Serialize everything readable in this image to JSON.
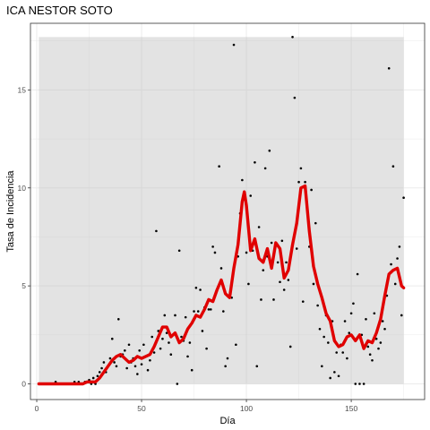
{
  "chart_data": {
    "type": "scatter",
    "title": "ICA NESTOR SOTO",
    "xlabel": "Día",
    "ylabel": "Tasa de Incidencia",
    "xlim": [
      -3,
      185
    ],
    "ylim": [
      -0.8,
      18.4
    ],
    "x_ticks": [
      0,
      50,
      100,
      150
    ],
    "y_ticks": [
      0,
      5,
      10,
      15
    ],
    "x_tick_labels": [
      "0",
      "50",
      "100",
      "150"
    ],
    "y_tick_labels": [
      "0",
      "5",
      "10",
      "15"
    ],
    "grid": true,
    "legend": "none",
    "colors": {
      "panel_background": "#ffffff",
      "grid": "#ebebeb",
      "confidence_band": "#bdbdbd",
      "points": "#000000",
      "smoothed_line": "#e00000"
    },
    "confidence_band": {
      "x": [
        1,
        175
      ],
      "y": [
        0,
        17.7
      ]
    },
    "series": [
      {
        "type": "points",
        "points": [
          [
            1,
            0
          ],
          [
            3,
            0
          ],
          [
            5,
            0
          ],
          [
            6,
            0
          ],
          [
            8,
            0
          ],
          [
            9,
            0.1
          ],
          [
            10,
            0
          ],
          [
            12,
            0
          ],
          [
            14,
            0
          ],
          [
            15,
            0
          ],
          [
            16,
            0
          ],
          [
            17,
            0
          ],
          [
            18,
            0.1
          ],
          [
            19,
            0
          ],
          [
            20,
            0.1
          ],
          [
            21,
            0
          ],
          [
            22,
            0
          ],
          [
            23,
            0.1
          ],
          [
            24,
            0.1
          ],
          [
            25,
            0.2
          ],
          [
            26,
            0
          ],
          [
            27,
            0.3
          ],
          [
            28,
            0
          ],
          [
            29,
            0.4
          ],
          [
            30,
            0.6
          ],
          [
            31,
            0.8
          ],
          [
            32,
            1.1
          ],
          [
            33,
            0.6
          ],
          [
            34,
            0.9
          ],
          [
            35,
            1.3
          ],
          [
            36,
            2.3
          ],
          [
            37,
            1.1
          ],
          [
            38,
            0.9
          ],
          [
            39,
            3.3
          ],
          [
            40,
            1.4
          ],
          [
            41,
            1.5
          ],
          [
            42,
            1.7
          ],
          [
            43,
            0.8
          ],
          [
            44,
            2
          ],
          [
            45,
            1.1
          ],
          [
            46,
            1.3
          ],
          [
            47,
            0.9
          ],
          [
            48,
            0.5
          ],
          [
            49,
            1.7
          ],
          [
            50,
            1
          ],
          [
            51,
            2
          ],
          [
            52,
            1.4
          ],
          [
            53,
            0.7
          ],
          [
            54,
            1.2
          ],
          [
            55,
            2.4
          ],
          [
            56,
            1.6
          ],
          [
            57,
            7.8
          ],
          [
            58,
            2.7
          ],
          [
            59,
            1.8
          ],
          [
            60,
            2.3
          ],
          [
            61,
            3.5
          ],
          [
            62,
            2.6
          ],
          [
            63,
            2.1
          ],
          [
            64,
            1.5
          ],
          [
            65,
            2.5
          ],
          [
            66,
            3.5
          ],
          [
            67,
            0
          ],
          [
            68,
            6.8
          ],
          [
            69,
            2.4
          ],
          [
            70,
            2.2
          ],
          [
            71,
            3.4
          ],
          [
            72,
            1.4
          ],
          [
            73,
            2.1
          ],
          [
            74,
            0.7
          ],
          [
            75,
            3.7
          ],
          [
            76,
            4.9
          ],
          [
            77,
            3.7
          ],
          [
            78,
            4.8
          ],
          [
            79,
            2.7
          ],
          [
            80,
            3.9
          ],
          [
            81,
            1.8
          ],
          [
            82,
            3.8
          ],
          [
            83,
            3.8
          ],
          [
            84,
            7
          ],
          [
            85,
            6.7
          ],
          [
            86,
            4.8
          ],
          [
            87,
            11.1
          ],
          [
            88,
            5.9
          ],
          [
            89,
            3.7
          ],
          [
            90,
            0.9
          ],
          [
            91,
            1.3
          ],
          [
            92,
            4.5
          ],
          [
            93,
            4.4
          ],
          [
            94,
            17.3
          ],
          [
            95,
            2
          ],
          [
            96,
            6.5
          ],
          [
            97,
            8.7
          ],
          [
            98,
            10.4
          ],
          [
            99,
            9.8
          ],
          [
            100,
            6.7
          ],
          [
            101,
            5.1
          ],
          [
            102,
            9.6
          ],
          [
            103,
            6.8
          ],
          [
            104,
            11.3
          ],
          [
            105,
            0.9
          ],
          [
            106,
            8
          ],
          [
            107,
            4.3
          ],
          [
            108,
            5.8
          ],
          [
            109,
            11
          ],
          [
            110,
            6.5
          ],
          [
            111,
            11.9
          ],
          [
            112,
            7.2
          ],
          [
            113,
            4.3
          ],
          [
            114,
            7.1
          ],
          [
            115,
            6.2
          ],
          [
            116,
            5.2
          ],
          [
            117,
            7.3
          ],
          [
            118,
            4.8
          ],
          [
            119,
            6.2
          ],
          [
            120,
            5.3
          ],
          [
            121,
            1.9
          ],
          [
            122,
            17.7
          ],
          [
            123,
            14.6
          ],
          [
            124,
            6.9
          ],
          [
            125,
            10.3
          ],
          [
            126,
            11
          ],
          [
            127,
            4.2
          ],
          [
            128,
            10.3
          ],
          [
            129,
            8.9
          ],
          [
            130,
            7
          ],
          [
            131,
            9.9
          ],
          [
            132,
            5.1
          ],
          [
            133,
            8.2
          ],
          [
            134,
            4
          ],
          [
            135,
            2.8
          ],
          [
            136,
            0.9
          ],
          [
            137,
            2.4
          ],
          [
            138,
            3.5
          ],
          [
            139,
            2.1
          ],
          [
            140,
            0.3
          ],
          [
            141,
            3.2
          ],
          [
            142,
            0.6
          ],
          [
            143,
            1.6
          ],
          [
            144,
            0.4
          ],
          [
            145,
            2
          ],
          [
            146,
            1.6
          ],
          [
            147,
            3.2
          ],
          [
            148,
            1.3
          ],
          [
            149,
            2.6
          ],
          [
            150,
            3.6
          ],
          [
            151,
            4.1
          ],
          [
            152,
            0
          ],
          [
            153,
            5.6
          ],
          [
            154,
            0
          ],
          [
            155,
            2.5
          ],
          [
            156,
            0
          ],
          [
            157,
            3.3
          ],
          [
            158,
            1.9
          ],
          [
            159,
            1.5
          ],
          [
            160,
            1.2
          ],
          [
            161,
            3.6
          ],
          [
            162,
            2.3
          ],
          [
            163,
            1.8
          ],
          [
            164,
            2.1
          ],
          [
            165,
            3.2
          ],
          [
            166,
            2.8
          ],
          [
            167,
            4.5
          ],
          [
            168,
            16.1
          ],
          [
            169,
            6.1
          ],
          [
            170,
            11.1
          ],
          [
            171,
            5.1
          ],
          [
            172,
            6.4
          ],
          [
            173,
            7
          ],
          [
            174,
            3.5
          ],
          [
            175,
            9.5
          ]
        ]
      },
      {
        "type": "line",
        "x": [
          1,
          22,
          24,
          26,
          28,
          30,
          32,
          34,
          36,
          38,
          40,
          42,
          44,
          46,
          48,
          50,
          52,
          54,
          56,
          58,
          60,
          62,
          64,
          66,
          68,
          70,
          72,
          74,
          76,
          78,
          80,
          82,
          84,
          86,
          88,
          90,
          92,
          94,
          96,
          98,
          99,
          100,
          102,
          104,
          106,
          108,
          110,
          112,
          114,
          116,
          118,
          120,
          122,
          124,
          126,
          128,
          130,
          132,
          134,
          136,
          138,
          140,
          142,
          144,
          146,
          148,
          150,
          152,
          154,
          156,
          158,
          160,
          162,
          164,
          166,
          168,
          170,
          172,
          174,
          175
        ],
        "y": [
          0,
          0,
          0.1,
          0.1,
          0.1,
          0.3,
          0.6,
          0.9,
          1.2,
          1.4,
          1.5,
          1.3,
          1.1,
          1.2,
          1.4,
          1.3,
          1.4,
          1.5,
          1.9,
          2.4,
          2.9,
          2.9,
          2.4,
          2.6,
          2.1,
          2.3,
          2.8,
          3.1,
          3.5,
          3.4,
          3.8,
          4.3,
          4.2,
          4.8,
          5.3,
          4.6,
          4.4,
          5.9,
          7.1,
          9.3,
          9.8,
          9.1,
          6.8,
          7.4,
          6.4,
          6.2,
          6.9,
          5.9,
          7.2,
          6.9,
          5.4,
          5.8,
          7.1,
          8.2,
          10,
          10.1,
          7.8,
          6,
          5.1,
          4.4,
          3.6,
          3.2,
          2.2,
          1.9,
          2,
          2.4,
          2.5,
          2.2,
          2.5,
          1.8,
          2.2,
          2.1,
          2.6,
          3.3,
          4.5,
          5.6,
          5.8,
          5.9,
          5,
          4.9
        ]
      }
    ]
  }
}
